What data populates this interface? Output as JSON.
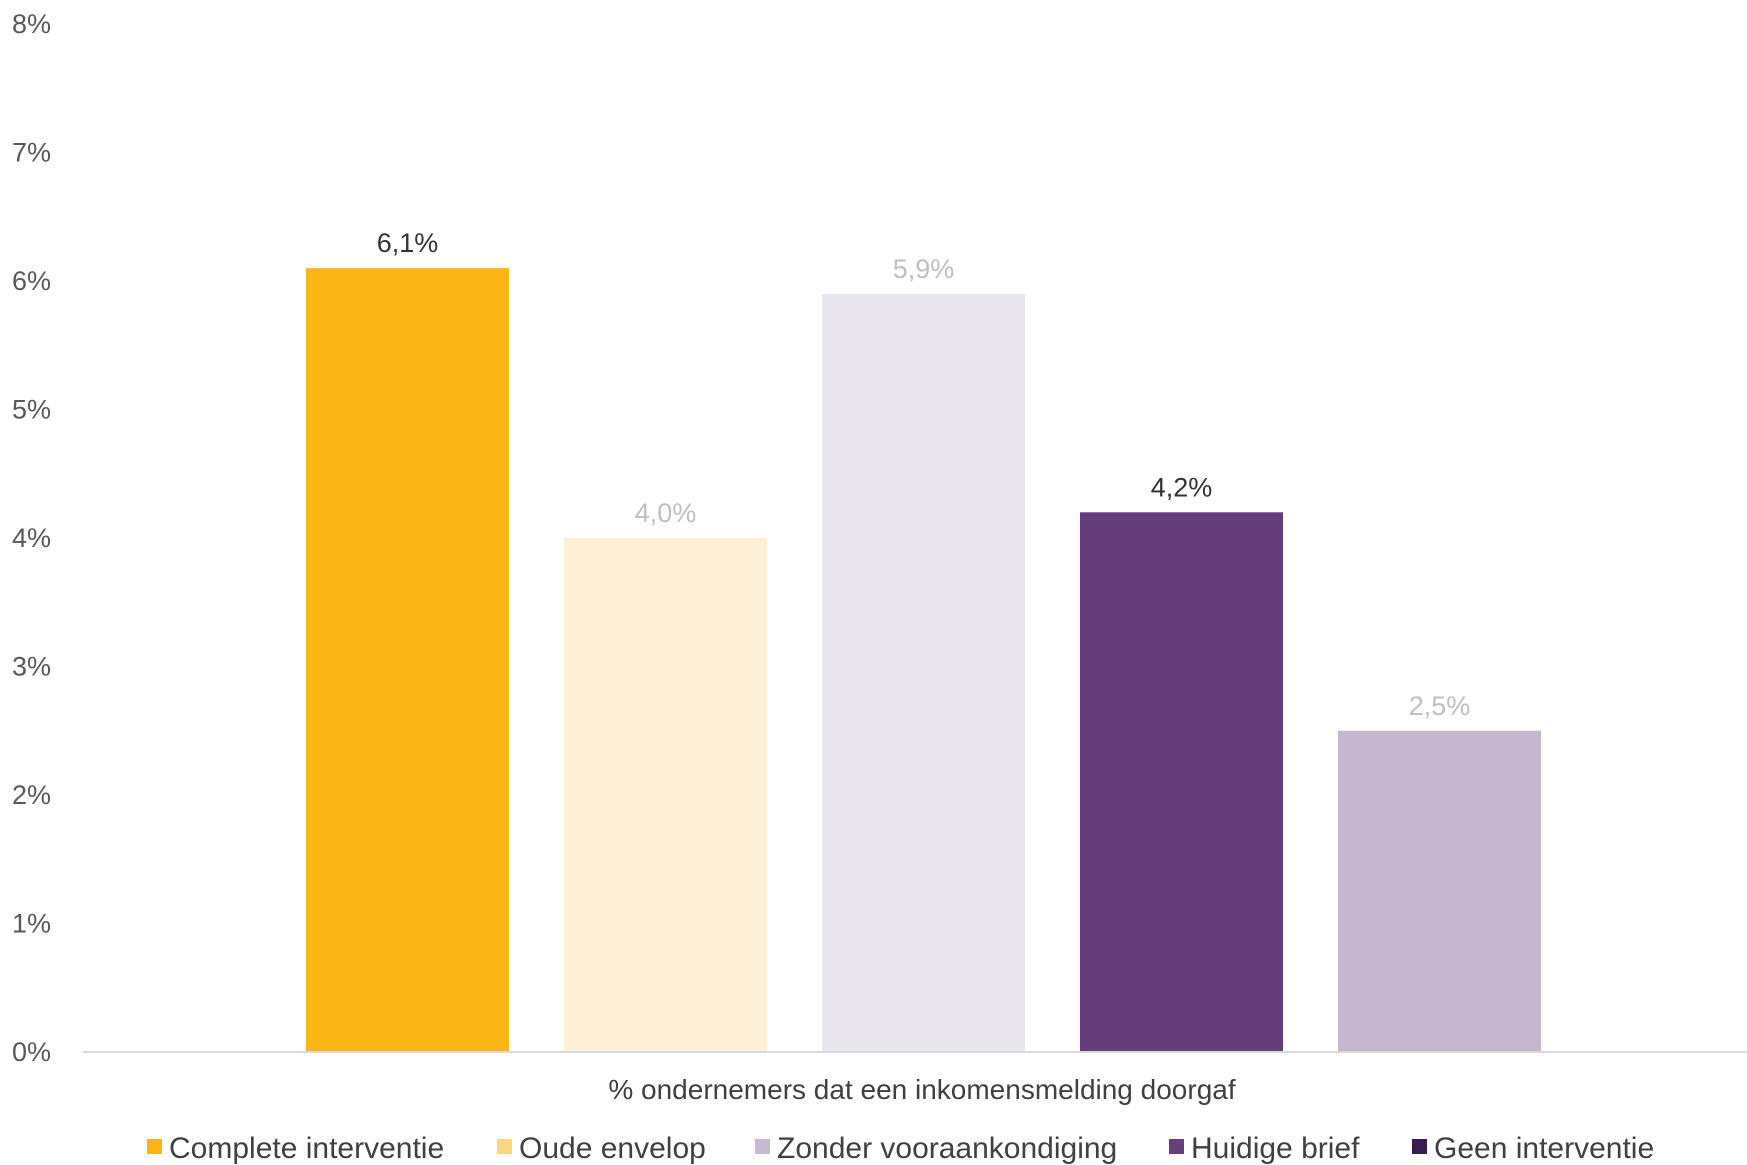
{
  "chart_data": {
    "type": "bar",
    "xlabel": "% ondernemers dat een inkomensmelding doorgaf",
    "ylim": [
      0,
      8
    ],
    "yticks": [
      "0%",
      "1%",
      "2%",
      "3%",
      "4%",
      "5%",
      "6%",
      "7%",
      "8%"
    ],
    "grid": false,
    "legend_position": "bottom",
    "series": [
      {
        "name": "Complete interventie",
        "value": 6.1,
        "label": "6,1%",
        "color": "#FBB615",
        "label_color": "#333333"
      },
      {
        "name": "Oude envelop",
        "value": 4.0,
        "label": "4,0%",
        "color": "#FCEFD5",
        "label_color": "#BFBFBF"
      },
      {
        "name": "Zonder vooraankondiging",
        "value": 5.9,
        "label": "5,9%",
        "color": "#EAE6ED",
        "label_color": "#BFBFBF"
      },
      {
        "name": "Huidige brief",
        "value": 4.2,
        "label": "4,2%",
        "color": "#653D7B",
        "label_color": "#333333"
      },
      {
        "name": "Geen interventie",
        "value": 2.5,
        "label": "2,5%",
        "color": "#C4B8CF",
        "label_color": "#BFBFBF"
      }
    ],
    "legend_colors": [
      "#FBB615",
      "#FDD77F",
      "#C6B9D1",
      "#65407D",
      "#3A1A57"
    ]
  }
}
